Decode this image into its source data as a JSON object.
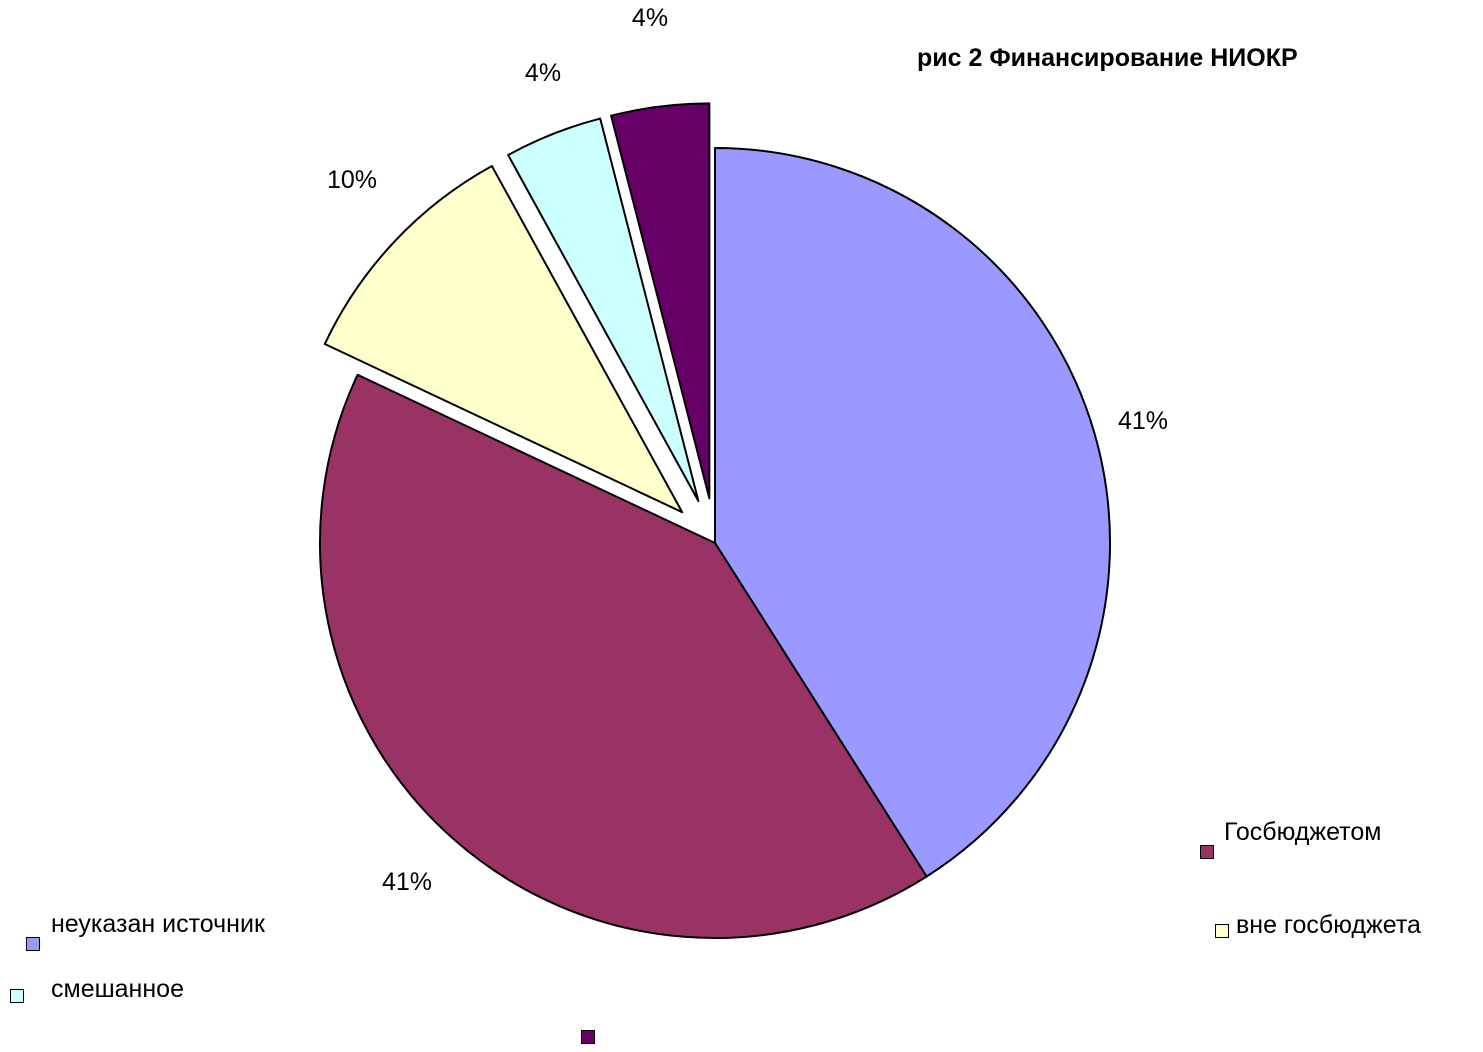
{
  "chart_data": {
    "type": "pie",
    "title": "рис 2 Финансирование НИОКР",
    "slices": [
      {
        "name": "неуказан источник",
        "value": 41,
        "label": "41%",
        "color": "#9999FF",
        "exploded": false
      },
      {
        "name": "Госбюджетом",
        "value": 41,
        "label": "41%",
        "color": "#993366",
        "exploded": false
      },
      {
        "name": "вне госбюджета",
        "value": 10,
        "label": "10%",
        "color": "#FFFFCC",
        "exploded": true
      },
      {
        "name": "смешанное",
        "value": 4,
        "label": "4%",
        "color": "#CCFFFF",
        "exploded": true
      },
      {
        "name": "",
        "value": 4,
        "label": "4%",
        "color": "#660066",
        "exploded": true
      }
    ],
    "legend": "scattered"
  }
}
